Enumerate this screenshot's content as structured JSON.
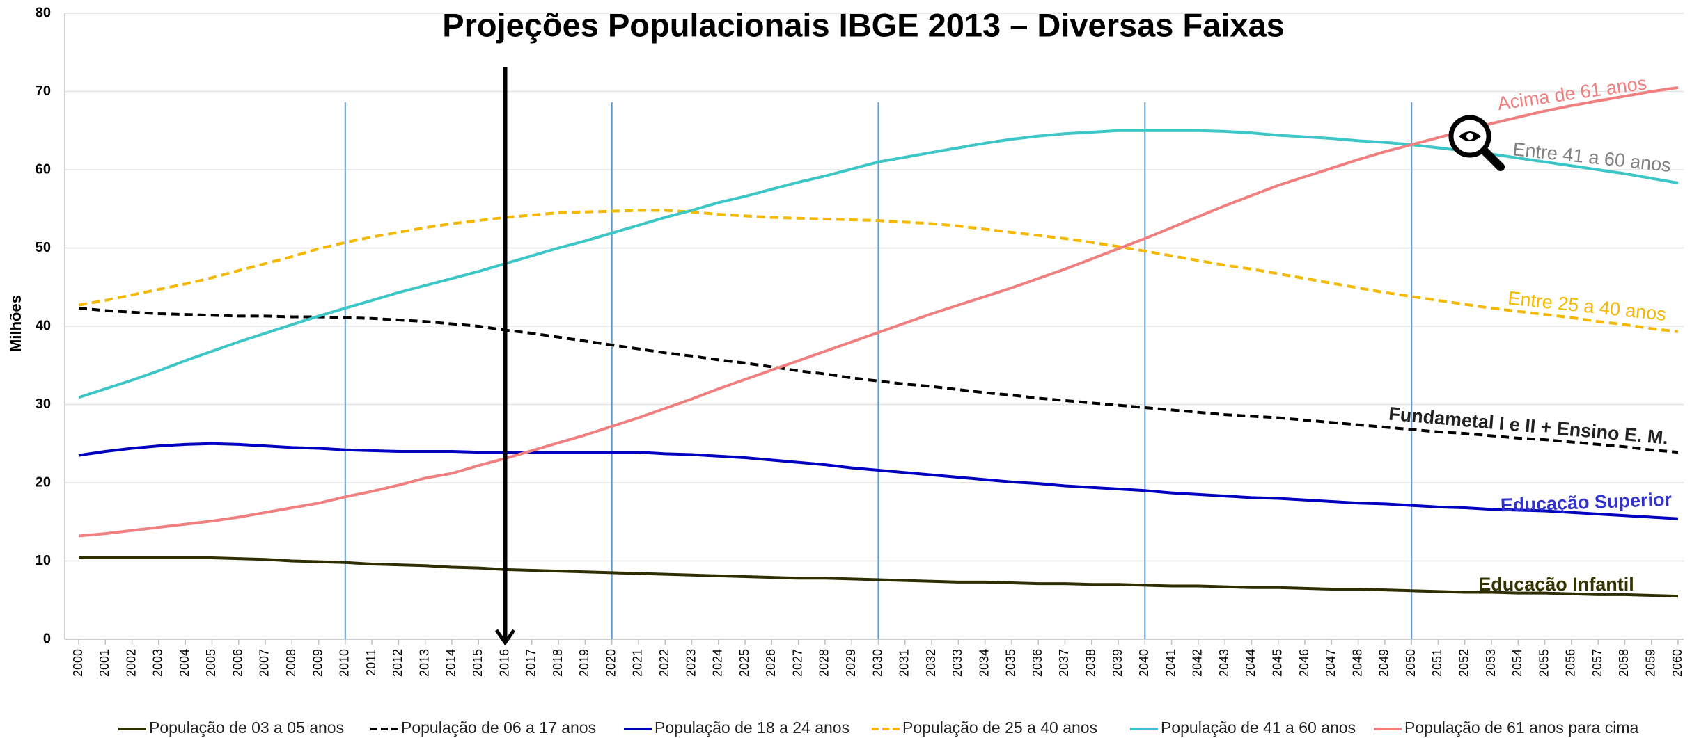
{
  "chart_data": {
    "type": "line",
    "title": "Projeções Populacionais IBGE 2013 – Diversas Faixas",
    "y_label": "Milhões",
    "x": [
      2000,
      2001,
      2002,
      2003,
      2004,
      2005,
      2006,
      2007,
      2008,
      2009,
      2010,
      2011,
      2012,
      2013,
      2014,
      2015,
      2016,
      2017,
      2018,
      2019,
      2020,
      2021,
      2022,
      2023,
      2024,
      2025,
      2026,
      2027,
      2028,
      2029,
      2030,
      2031,
      2032,
      2033,
      2034,
      2035,
      2036,
      2037,
      2038,
      2039,
      2040,
      2041,
      2042,
      2043,
      2044,
      2045,
      2046,
      2047,
      2048,
      2049,
      2050,
      2051,
      2052,
      2053,
      2054,
      2055,
      2056,
      2057,
      2058,
      2059,
      2060
    ],
    "xlim": [
      2000,
      2060
    ],
    "ylim": [
      0,
      80
    ],
    "yticks": [
      0,
      10,
      20,
      30,
      40,
      50,
      60,
      70,
      80
    ],
    "grid": true,
    "legend": "bottom",
    "series": [
      {
        "name": "População de 03 a 05 anos",
        "color": "#2e2e00",
        "line_style": "solid",
        "values": [
          10.4,
          10.4,
          10.4,
          10.4,
          10.4,
          10.4,
          10.3,
          10.2,
          10.0,
          9.9,
          9.8,
          9.6,
          9.5,
          9.4,
          9.2,
          9.1,
          8.9,
          8.8,
          8.7,
          8.6,
          8.5,
          8.4,
          8.3,
          8.2,
          8.1,
          8.0,
          7.9,
          7.8,
          7.8,
          7.7,
          7.6,
          7.5,
          7.4,
          7.3,
          7.3,
          7.2,
          7.1,
          7.1,
          7.0,
          7.0,
          6.9,
          6.8,
          6.8,
          6.7,
          6.6,
          6.6,
          6.5,
          6.4,
          6.4,
          6.3,
          6.2,
          6.1,
          6.0,
          6.0,
          5.9,
          5.9,
          5.8,
          5.7,
          5.7,
          5.6,
          5.5
        ]
      },
      {
        "name": "População de 06 a 17 anos",
        "color": "#000000",
        "line_style": "dashed",
        "values": [
          42.3,
          42.0,
          41.8,
          41.6,
          41.5,
          41.4,
          41.3,
          41.3,
          41.2,
          41.2,
          41.1,
          41.0,
          40.8,
          40.6,
          40.3,
          40.0,
          39.5,
          39.1,
          38.6,
          38.1,
          37.6,
          37.1,
          36.6,
          36.2,
          35.7,
          35.3,
          34.8,
          34.3,
          33.9,
          33.4,
          33.0,
          32.6,
          32.3,
          31.9,
          31.5,
          31.2,
          30.8,
          30.5,
          30.2,
          29.9,
          29.6,
          29.3,
          29.0,
          28.7,
          28.5,
          28.3,
          28.0,
          27.7,
          27.4,
          27.1,
          26.8,
          26.5,
          26.3,
          26.0,
          25.7,
          25.5,
          25.2,
          24.9,
          24.6,
          24.2,
          23.9
        ]
      },
      {
        "name": "População de 18 a 24 anos",
        "color": "#0000c0",
        "line_style": "solid",
        "values": [
          23.5,
          24.0,
          24.4,
          24.7,
          24.9,
          25.0,
          24.9,
          24.7,
          24.5,
          24.4,
          24.2,
          24.1,
          24.0,
          24.0,
          24.0,
          23.9,
          23.9,
          23.9,
          23.9,
          23.9,
          23.9,
          23.9,
          23.7,
          23.6,
          23.4,
          23.2,
          22.9,
          22.6,
          22.3,
          21.9,
          21.6,
          21.3,
          21.0,
          20.7,
          20.4,
          20.1,
          19.9,
          19.6,
          19.4,
          19.2,
          19.0,
          18.7,
          18.5,
          18.3,
          18.1,
          18.0,
          17.8,
          17.6,
          17.4,
          17.3,
          17.1,
          16.9,
          16.8,
          16.6,
          16.5,
          16.4,
          16.2,
          16.0,
          15.8,
          15.6,
          15.4
        ]
      },
      {
        "name": "População de 25 a 40 anos",
        "color": "#f5b800",
        "line_style": "dashed",
        "values": [
          42.7,
          43.3,
          44.0,
          44.7,
          45.4,
          46.2,
          47.1,
          48.0,
          48.9,
          49.9,
          50.7,
          51.4,
          52.0,
          52.6,
          53.1,
          53.5,
          53.9,
          54.2,
          54.5,
          54.6,
          54.7,
          54.8,
          54.8,
          54.6,
          54.3,
          54.1,
          53.9,
          53.8,
          53.7,
          53.6,
          53.5,
          53.3,
          53.1,
          52.8,
          52.4,
          52.0,
          51.6,
          51.2,
          50.7,
          50.2,
          49.6,
          49.0,
          48.4,
          47.8,
          47.3,
          46.7,
          46.1,
          45.5,
          44.9,
          44.3,
          43.8,
          43.3,
          42.8,
          42.3,
          41.9,
          41.5,
          41.1,
          40.6,
          40.2,
          39.7,
          39.3
        ]
      },
      {
        "name": "População de 41 a 60 anos",
        "color": "#3cc6c6",
        "line_style": "solid",
        "values": [
          30.9,
          32.0,
          33.1,
          34.3,
          35.6,
          36.8,
          38.0,
          39.1,
          40.2,
          41.3,
          42.3,
          43.3,
          44.3,
          45.2,
          46.1,
          47.0,
          48.0,
          49.0,
          50.0,
          50.9,
          51.9,
          52.9,
          53.9,
          54.8,
          55.8,
          56.6,
          57.5,
          58.4,
          59.2,
          60.1,
          61.0,
          61.6,
          62.2,
          62.8,
          63.4,
          63.9,
          64.3,
          64.6,
          64.8,
          65.0,
          65.0,
          65.0,
          65.0,
          64.9,
          64.7,
          64.4,
          64.2,
          64.0,
          63.7,
          63.5,
          63.2,
          62.8,
          62.4,
          62.0,
          61.5,
          61.0,
          60.5,
          60.0,
          59.5,
          58.9,
          58.3
        ]
      },
      {
        "name": "População de 61 anos para cima",
        "color": "#f08080",
        "line_style": "solid",
        "values": [
          13.2,
          13.5,
          13.9,
          14.3,
          14.7,
          15.1,
          15.6,
          16.2,
          16.8,
          17.4,
          18.2,
          18.9,
          19.7,
          20.6,
          21.2,
          22.2,
          23.1,
          24.1,
          25.1,
          26.1,
          27.2,
          28.3,
          29.5,
          30.7,
          32.0,
          33.2,
          34.4,
          35.6,
          36.8,
          38.0,
          39.2,
          40.4,
          41.6,
          42.7,
          43.8,
          44.9,
          46.1,
          47.3,
          48.6,
          49.9,
          51.2,
          52.6,
          54.0,
          55.4,
          56.7,
          58.0,
          59.1,
          60.2,
          61.3,
          62.3,
          63.2,
          64.1,
          65.0,
          65.9,
          66.7,
          67.5,
          68.2,
          68.8,
          69.4,
          70.0,
          70.5
        ]
      }
    ],
    "annotations": [
      "Acima de 61 anos",
      "Entre 41 a 60 anos",
      "Entre 25 a 40 anos",
      "Fundametal I e II + Ensino E. M.",
      "Educação Superior",
      "Educação Infantil"
    ]
  }
}
